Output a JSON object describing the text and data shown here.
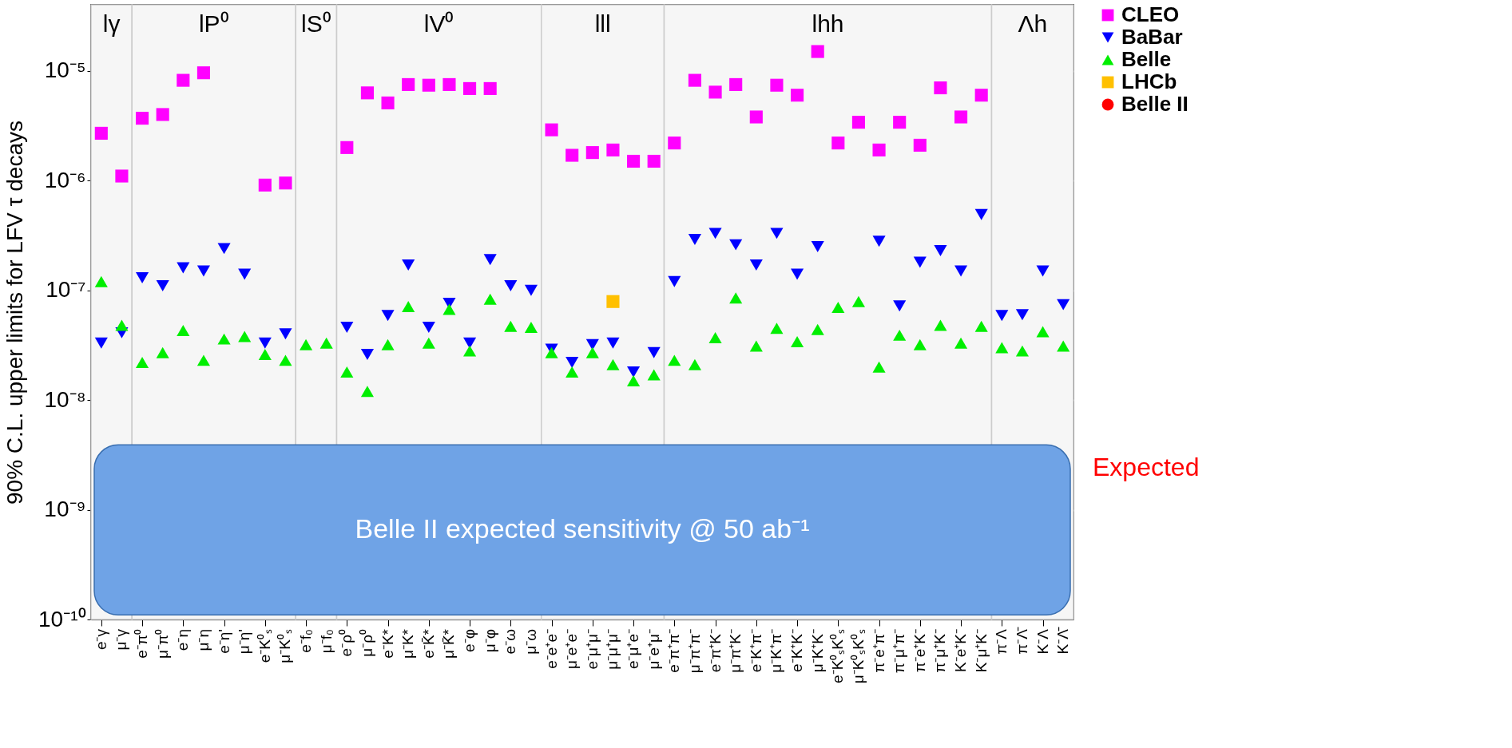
{
  "chart_data": {
    "type": "scatter",
    "ylabel": "90% C.L. upper limits for LFV τ decays",
    "categories": [
      "e⁻γ",
      "μ⁻γ",
      "e⁻π⁰",
      "μ⁻π⁰",
      "e⁻η",
      "μ⁻η",
      "e⁻η'",
      "μ⁻η'",
      "e⁻K⁰ₛ",
      "μ⁻K⁰ₛ",
      "e⁻f₀",
      "μ⁻f₀",
      "e⁻ρ⁰",
      "μ⁻ρ⁰",
      "e⁻K*",
      "μ⁻K*",
      "e⁻K̄*",
      "μ⁻K̄*",
      "e⁻φ",
      "μ⁻φ",
      "e⁻ω",
      "μ⁻ω",
      "e⁻e⁺e⁻",
      "μ⁻e⁺e⁻",
      "e⁻μ⁺μ⁻",
      "μ⁻μ⁺μ⁻",
      "e⁻μ⁺e⁻",
      "μ⁻e⁺μ⁻",
      "e⁻π⁺π⁻",
      "μ⁻π⁺π⁻",
      "e⁻π⁺K⁻",
      "μ⁻π⁺K⁻",
      "e⁻K⁺π⁻",
      "μ⁻K⁺π⁻",
      "e⁻K⁺K⁻",
      "μ⁻K⁺K⁻",
      "e⁻K⁰ₛK⁰ₛ",
      "μ⁻K⁰ₛK⁰ₛ",
      "π⁻e⁺π⁻",
      "π⁻μ⁺π⁻",
      "π⁻e⁺K⁻",
      "π⁻μ⁺K⁻",
      "K⁻e⁺K⁻",
      "K⁻μ⁺K⁻",
      "π⁻Λ",
      "π⁻Λ̄",
      "K⁻Λ",
      "K⁻Λ̄"
    ],
    "series": [
      {
        "name": "CLEO",
        "color": "#ff00ff",
        "marker": "square",
        "values": [
          2.7e-06,
          1.1e-06,
          3.7e-06,
          4e-06,
          8.2e-06,
          9.6e-06,
          null,
          null,
          9.1e-07,
          9.5e-07,
          null,
          null,
          2e-06,
          6.3e-06,
          5.1e-06,
          7.5e-06,
          7.4e-06,
          7.5e-06,
          6.9e-06,
          6.9e-06,
          null,
          null,
          2.9e-06,
          1.7e-06,
          1.8e-06,
          1.9e-06,
          1.5e-06,
          1.5e-06,
          2.2e-06,
          8.2e-06,
          6.4e-06,
          7.5e-06,
          3.8e-06,
          7.4e-06,
          6e-06,
          1.5e-05,
          2.2e-06,
          3.4e-06,
          1.9e-06,
          3.4e-06,
          2.1e-06,
          7e-06,
          3.8e-06,
          6e-06,
          null,
          null,
          null,
          null
        ]
      },
      {
        "name": "BaBar",
        "color": "#0000ff",
        "marker": "triangle-down",
        "values": [
          3.3e-08,
          4.1e-08,
          1.3e-07,
          1.1e-07,
          1.6e-07,
          1.5e-07,
          2.4e-07,
          1.4e-07,
          3.3e-08,
          4e-08,
          null,
          null,
          4.6e-08,
          2.6e-08,
          5.9e-08,
          1.7e-07,
          4.6e-08,
          7.6e-08,
          3.3e-08,
          1.9e-07,
          1.1e-07,
          1e-07,
          2.9e-08,
          2.2e-08,
          3.2e-08,
          3.3e-08,
          1.8e-08,
          2.7e-08,
          1.2e-07,
          2.9e-07,
          3.3e-07,
          2.6e-07,
          1.7e-07,
          3.3e-07,
          1.4e-07,
          2.5e-07,
          null,
          null,
          2.8e-07,
          7.2e-08,
          1.8e-07,
          2.3e-07,
          1.5e-07,
          4.9e-07,
          5.9e-08,
          6e-08,
          1.5e-07,
          7.4e-08
        ]
      },
      {
        "name": "Belle",
        "color": "#00ee00",
        "marker": "triangle",
        "values": [
          1.2e-07,
          4.8e-08,
          2.2e-08,
          2.7e-08,
          4.3e-08,
          2.3e-08,
          3.6e-08,
          3.8e-08,
          2.6e-08,
          2.3e-08,
          3.2e-08,
          3.3e-08,
          1.8e-08,
          1.2e-08,
          3.2e-08,
          7.1e-08,
          3.3e-08,
          6.7e-08,
          2.8e-08,
          8.3e-08,
          4.7e-08,
          4.6e-08,
          2.7e-08,
          1.8e-08,
          2.7e-08,
          2.1e-08,
          1.5e-08,
          1.7e-08,
          2.3e-08,
          2.1e-08,
          3.7e-08,
          8.5e-08,
          3.1e-08,
          4.5e-08,
          3.4e-08,
          4.4e-08,
          7e-08,
          7.9e-08,
          2e-08,
          3.9e-08,
          3.2e-08,
          4.8e-08,
          3.3e-08,
          4.7e-08,
          3e-08,
          2.8e-08,
          4.2e-08,
          3.1e-08
        ]
      },
      {
        "name": "LHCb",
        "color": "#ffc000",
        "marker": "square",
        "values": [
          null,
          null,
          null,
          null,
          null,
          null,
          null,
          null,
          null,
          null,
          null,
          null,
          null,
          null,
          null,
          null,
          null,
          null,
          null,
          null,
          null,
          null,
          null,
          null,
          null,
          7.9e-08,
          null,
          null,
          null,
          null,
          null,
          null,
          null,
          null,
          null,
          null,
          null,
          null,
          null,
          null,
          null,
          null,
          null,
          null,
          null,
          null,
          null,
          null
        ]
      },
      {
        "name": "Belle II",
        "color": "#ff0000",
        "marker": "circle",
        "values": [
          null,
          null,
          null,
          null,
          null,
          null,
          null,
          null,
          null,
          null,
          null,
          null,
          null,
          null,
          null,
          null,
          null,
          null,
          null,
          null,
          null,
          null,
          null,
          null,
          null,
          null,
          null,
          null,
          null,
          null,
          null,
          null,
          null,
          null,
          null,
          null,
          null,
          null,
          null,
          null,
          null,
          null,
          null,
          null,
          null,
          null,
          null,
          null
        ]
      }
    ],
    "log": "y",
    "ylim": [
      1e-10,
      4e-05
    ],
    "yticks": [
      {
        "value": 1e-10,
        "label": "10⁻¹⁰"
      },
      {
        "value": 1e-09,
        "label": "10⁻⁹"
      },
      {
        "value": 1e-08,
        "label": "10⁻⁸"
      },
      {
        "value": 1e-07,
        "label": "10⁻⁷"
      },
      {
        "value": 1e-06,
        "label": "10⁻⁶"
      },
      {
        "value": 1e-05,
        "label": "10⁻⁵"
      }
    ],
    "grid": "y",
    "legend": "right",
    "bands": [
      {
        "axis": "x",
        "from": "e⁻γ",
        "to": "μ⁻γ",
        "label": "lγ",
        "color": "#f6f6f6"
      },
      {
        "axis": "x",
        "from": "e⁻π⁰",
        "to": "μ⁻K⁰ₛ",
        "label": "lP⁰",
        "color": "#f6f6f6"
      },
      {
        "axis": "x",
        "from": "e⁻f₀",
        "to": "μ⁻f₀",
        "label": "lS⁰",
        "color": "#f6f6f6"
      },
      {
        "axis": "x",
        "from": "e⁻ρ⁰",
        "to": "μ⁻ω",
        "label": "lV⁰",
        "color": "#f6f6f6"
      },
      {
        "axis": "x",
        "from": "e⁻e⁺e⁻",
        "to": "μ⁻e⁺μ⁻",
        "label": "lll",
        "color": "#f6f6f6"
      },
      {
        "axis": "x",
        "from": "e⁻π⁺π⁻",
        "to": "K⁻μ⁺K⁻",
        "label": "lhh",
        "color": "#f6f6f6"
      },
      {
        "axis": "x",
        "from": "π⁻Λ",
        "to": "K⁻Λ̄",
        "label": "Λh",
        "color": "#f6f6f6"
      },
      {
        "axis": "y",
        "from": 1.1e-10,
        "to": 3.9e-09,
        "label": "Belle II expected sensitivity @ 50 ab⁻¹",
        "color": "#6fa3e6"
      }
    ],
    "annotations": [
      "Expected"
    ]
  }
}
